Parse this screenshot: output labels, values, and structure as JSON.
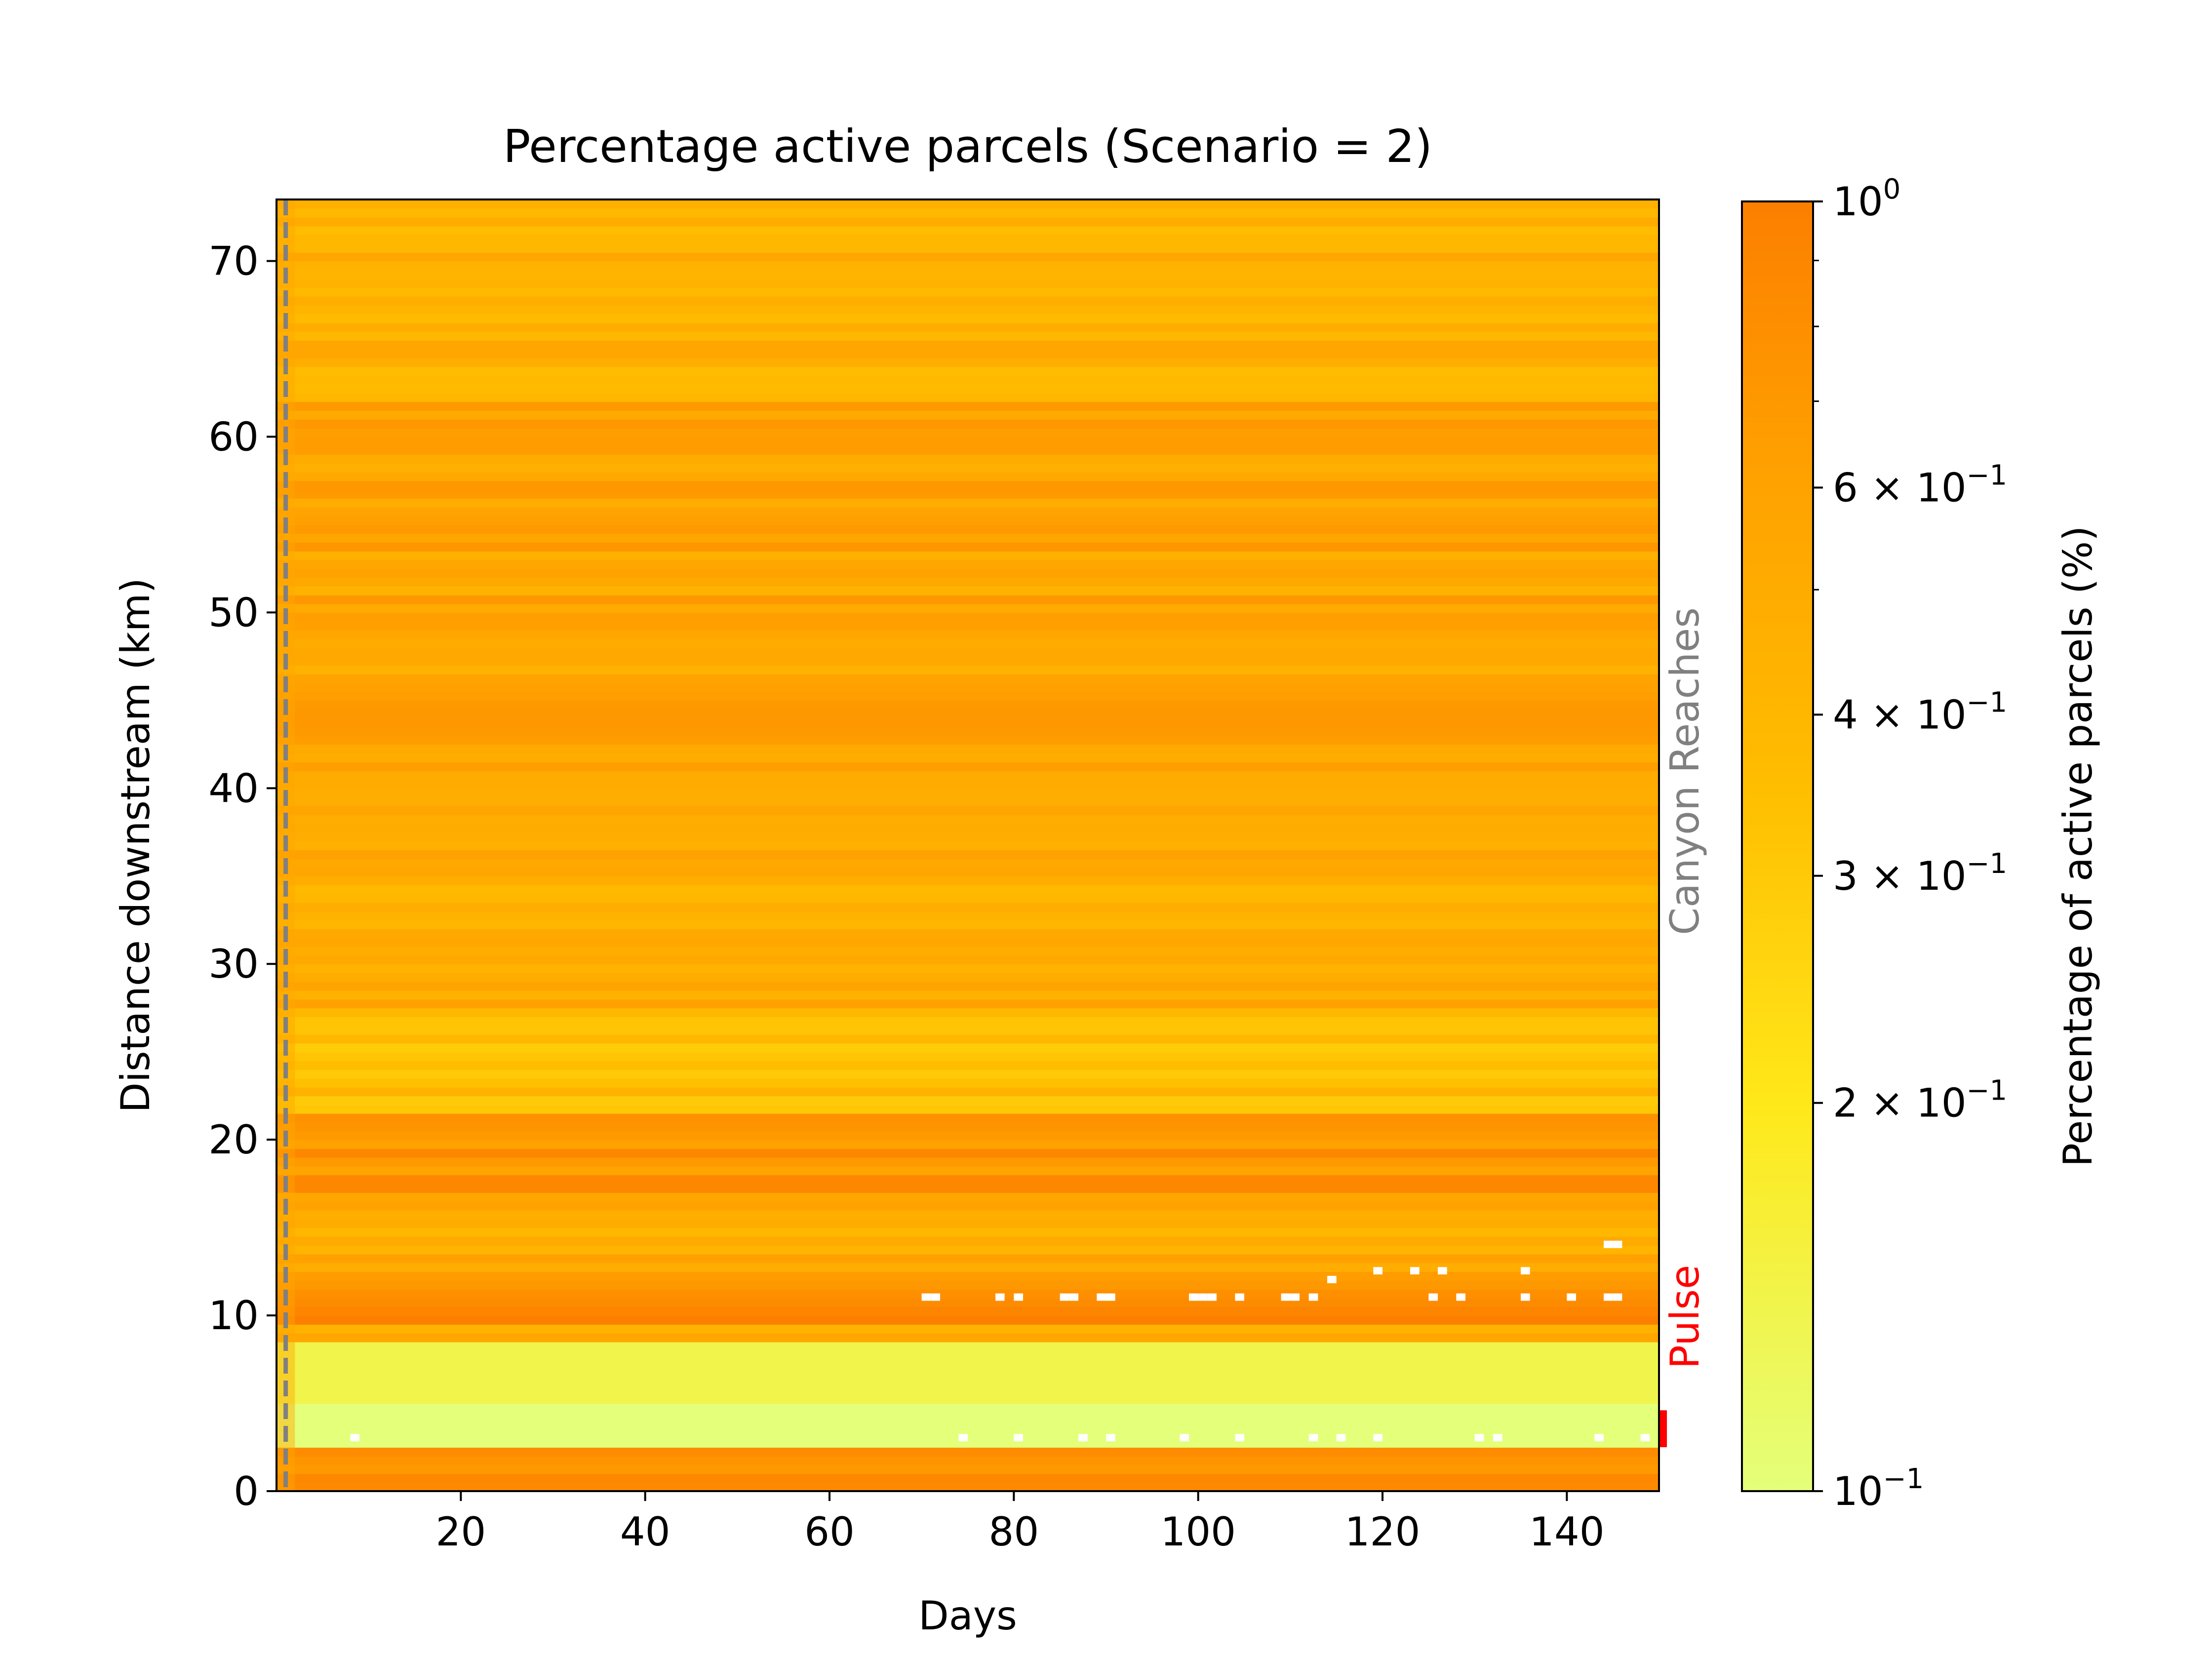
{
  "chart_data": {
    "type": "heatmap",
    "title": "Percentage active parcels (Scenario = 2)",
    "xlabel": "Days",
    "ylabel": "Distance downstream (km)",
    "xlim": [
      0,
      150
    ],
    "ylim": [
      0,
      73.5
    ],
    "x_ticks": [
      20,
      40,
      60,
      80,
      100,
      120,
      140
    ],
    "x_tick_labels": [
      "20",
      "40",
      "60",
      "80",
      "100",
      "120",
      "140"
    ],
    "y_ticks": [
      0,
      10,
      20,
      30,
      40,
      50,
      60,
      70
    ],
    "y_tick_labels": [
      "0",
      "10",
      "20",
      "30",
      "40",
      "50",
      "60",
      "70"
    ],
    "colorbar": {
      "label": "Percentage of active parcels (%)",
      "scale": "log",
      "range": [
        0.1,
        1.0
      ],
      "colormap": "Wistia",
      "colormap_stops": [
        "#e4ff7a",
        "#ffe81a",
        "#ffbd00",
        "#ffa000",
        "#fc7f00"
      ],
      "tick_values": [
        1.0,
        0.6,
        0.4,
        0.3,
        0.2,
        0.1
      ],
      "tick_labels": [
        {
          "mantissa": "",
          "base": "10",
          "exponent": "0"
        },
        {
          "mantissa": "6 × ",
          "base": "10",
          "exponent": "−1"
        },
        {
          "mantissa": "4 × ",
          "base": "10",
          "exponent": "−1"
        },
        {
          "mantissa": "3 × ",
          "base": "10",
          "exponent": "−1"
        },
        {
          "mantissa": "2 × ",
          "base": "10",
          "exponent": "−1"
        },
        {
          "mantissa": "",
          "base": "10",
          "exponent": "−1"
        }
      ],
      "minor_tick_values": [
        0.9,
        0.8,
        0.7,
        0.5
      ]
    },
    "reference_line": {
      "x": 1,
      "style": "dashed",
      "color": "#808080"
    },
    "annotations": [
      {
        "text": "Canyon Reaches",
        "color": "#808080",
        "y_range": [
          28,
          51
        ]
      },
      {
        "text": "Pulse",
        "color": "#ff0000",
        "y_range": [
          6,
          13.5
        ]
      }
    ],
    "pulse_marker": {
      "y_range": [
        2.5,
        4.6
      ],
      "color": "#ff0000"
    },
    "grid": false,
    "day_count": 150,
    "reach_length_km": 0.5,
    "row_bands": [
      {
        "y_range": [
          0,
          2.3
        ],
        "value": 0.86
      },
      {
        "y_range": [
          2.3,
          4.8
        ],
        "value": 0.1
      },
      {
        "y_range": [
          4.8,
          8.2
        ],
        "value": 0.14
      },
      {
        "y_range": [
          8.2,
          9.5
        ],
        "value": 0.55
      },
      {
        "y_range": [
          9.5,
          11.5
        ],
        "value": 0.88
      },
      {
        "y_range": [
          11.5,
          13.5
        ],
        "value": 0.62
      },
      {
        "y_range": [
          13.5,
          16.0
        ],
        "value": 0.48
      },
      {
        "y_range": [
          16.0,
          21.5
        ],
        "value": 0.72
      },
      {
        "y_range": [
          21.5,
          27.0
        ],
        "value": 0.35
      },
      {
        "y_range": [
          27.0,
          40.0
        ],
        "value": 0.5
      },
      {
        "y_range": [
          40.0,
          55.0
        ],
        "value": 0.58
      },
      {
        "y_range": [
          55.0,
          62.0
        ],
        "value": 0.6
      },
      {
        "y_range": [
          62.0,
          73.5
        ],
        "value": 0.48
      }
    ],
    "missing_cells": [
      {
        "day": 71,
        "y": 11.0
      },
      {
        "day": 72,
        "y": 11.0
      },
      {
        "day": 79,
        "y": 11.0
      },
      {
        "day": 81,
        "y": 11.0
      },
      {
        "day": 86,
        "y": 11.0
      },
      {
        "day": 87,
        "y": 11.0
      },
      {
        "day": 90,
        "y": 11.0
      },
      {
        "day": 91,
        "y": 11.0
      },
      {
        "day": 100,
        "y": 11.0
      },
      {
        "day": 101,
        "y": 11.0
      },
      {
        "day": 102,
        "y": 11.0
      },
      {
        "day": 105,
        "y": 11.0
      },
      {
        "day": 110,
        "y": 11.0
      },
      {
        "day": 111,
        "y": 11.0
      },
      {
        "day": 113,
        "y": 11.0
      },
      {
        "day": 115,
        "y": 12.0
      },
      {
        "day": 120,
        "y": 12.5
      },
      {
        "day": 124,
        "y": 12.5
      },
      {
        "day": 126,
        "y": 11.0
      },
      {
        "day": 127,
        "y": 12.5
      },
      {
        "day": 129,
        "y": 11.0
      },
      {
        "day": 136,
        "y": 11.0
      },
      {
        "day": 136,
        "y": 12.5
      },
      {
        "day": 141,
        "y": 11.0
      },
      {
        "day": 145,
        "y": 11.0
      },
      {
        "day": 146,
        "y": 11.0
      },
      {
        "day": 145,
        "y": 14.0
      },
      {
        "day": 146,
        "y": 14.0
      },
      {
        "day": 9,
        "y": 3.0
      },
      {
        "day": 75,
        "y": 3.0
      },
      {
        "day": 81,
        "y": 3.0
      },
      {
        "day": 88,
        "y": 3.0
      },
      {
        "day": 91,
        "y": 3.0
      },
      {
        "day": 99,
        "y": 3.0
      },
      {
        "day": 105,
        "y": 3.0
      },
      {
        "day": 113,
        "y": 3.0
      },
      {
        "day": 116,
        "y": 3.0
      },
      {
        "day": 120,
        "y": 3.0
      },
      {
        "day": 131,
        "y": 3.0
      },
      {
        "day": 133,
        "y": 3.0
      },
      {
        "day": 144,
        "y": 3.0
      },
      {
        "day": 149,
        "y": 3.0
      }
    ]
  }
}
